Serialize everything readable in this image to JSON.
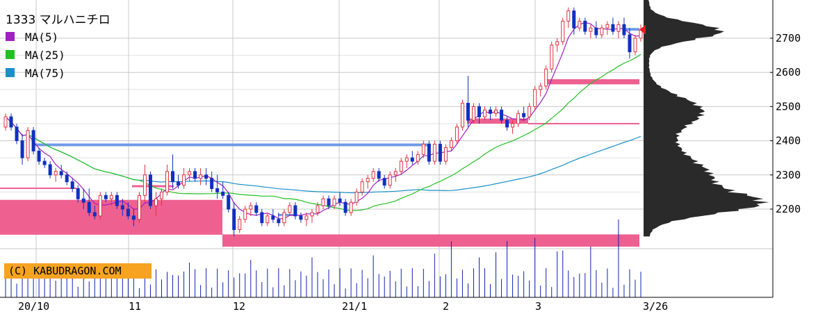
{
  "chart_data": {
    "type": "candlestick",
    "title": "1333 マルハニチロ",
    "legend": [
      {
        "name": "MA(5)",
        "color": "#a020c0"
      },
      {
        "name": "MA(25)",
        "color": "#22c022"
      },
      {
        "name": "MA(75)",
        "color": "#1890c8"
      }
    ],
    "watermark": "(C) KABUDRAGON.COM",
    "y_ticks": [
      2200,
      2300,
      2400,
      2500,
      2600,
      2700
    ],
    "y_tick_labels": [
      "2200",
      "2300",
      "2400",
      "2500",
      "2600",
      "2700"
    ],
    "ylim": [
      2090,
      2880
    ],
    "x_labels": [
      "20/10",
      "11",
      "12",
      "21/1",
      "2",
      "3",
      "3/26"
    ],
    "grid": true,
    "colors": {
      "up": "#e03040",
      "down": "#1030c0",
      "ma5": "#a020c0",
      "ma25": "#22c022",
      "ma75": "#1890c8",
      "gap_zone": "#ee6090",
      "resistance": "#6f9ae6",
      "volume": "#1020b0",
      "volume_profile": "#2a2a2a",
      "watermark_bg": "#f5a320",
      "last_marker": "#e02020"
    },
    "last_price": 2725,
    "ohlc": [
      [
        2440,
        2480,
        2430,
        2470
      ],
      [
        2470,
        2480,
        2430,
        2440
      ],
      [
        2440,
        2450,
        2390,
        2400
      ],
      [
        2400,
        2420,
        2330,
        2350
      ],
      [
        2350,
        2440,
        2340,
        2430
      ],
      [
        2430,
        2440,
        2360,
        2370
      ],
      [
        2370,
        2380,
        2330,
        2340
      ],
      [
        2340,
        2350,
        2320,
        2330
      ],
      [
        2330,
        2340,
        2290,
        2300
      ],
      [
        2300,
        2320,
        2280,
        2310
      ],
      [
        2310,
        2330,
        2290,
        2300
      ],
      [
        2300,
        2310,
        2270,
        2280
      ],
      [
        2280,
        2290,
        2250,
        2260
      ],
      [
        2260,
        2270,
        2220,
        2230
      ],
      [
        2230,
        2260,
        2200,
        2220
      ],
      [
        2220,
        2260,
        2180,
        2190
      ],
      [
        2190,
        2210,
        2170,
        2180
      ],
      [
        2180,
        2250,
        2170,
        2240
      ],
      [
        2240,
        2250,
        2220,
        2230
      ],
      [
        2230,
        2250,
        2210,
        2240
      ],
      [
        2240,
        2250,
        2200,
        2210
      ],
      [
        2210,
        2230,
        2180,
        2200
      ],
      [
        2200,
        2220,
        2170,
        2180
      ],
      [
        2180,
        2200,
        2150,
        2170
      ],
      [
        2170,
        2250,
        2160,
        2240
      ],
      [
        2240,
        2330,
        2220,
        2300
      ],
      [
        2300,
        2310,
        2200,
        2210
      ],
      [
        2210,
        2250,
        2180,
        2230
      ],
      [
        2230,
        2260,
        2210,
        2250
      ],
      [
        2250,
        2330,
        2240,
        2310
      ],
      [
        2310,
        2360,
        2260,
        2280
      ],
      [
        2280,
        2300,
        2260,
        2270
      ],
      [
        2270,
        2320,
        2260,
        2300
      ],
      [
        2300,
        2320,
        2280,
        2310
      ],
      [
        2310,
        2320,
        2280,
        2290
      ],
      [
        2290,
        2320,
        2270,
        2300
      ],
      [
        2300,
        2320,
        2270,
        2290
      ],
      [
        2290,
        2310,
        2250,
        2260
      ],
      [
        2260,
        2300,
        2230,
        2250
      ],
      [
        2250,
        2280,
        2230,
        2240
      ],
      [
        2240,
        2250,
        2190,
        2200
      ],
      [
        2200,
        2220,
        2120,
        2140
      ],
      [
        2140,
        2180,
        2130,
        2170
      ],
      [
        2170,
        2210,
        2160,
        2200
      ],
      [
        2200,
        2220,
        2180,
        2210
      ],
      [
        2210,
        2220,
        2180,
        2190
      ],
      [
        2190,
        2200,
        2150,
        2160
      ],
      [
        2160,
        2190,
        2150,
        2180
      ],
      [
        2180,
        2200,
        2160,
        2170
      ],
      [
        2170,
        2190,
        2150,
        2160
      ],
      [
        2160,
        2200,
        2150,
        2190
      ],
      [
        2190,
        2220,
        2180,
        2210
      ],
      [
        2210,
        2220,
        2170,
        2180
      ],
      [
        2180,
        2190,
        2160,
        2170
      ],
      [
        2170,
        2190,
        2150,
        2180
      ],
      [
        2180,
        2200,
        2160,
        2190
      ],
      [
        2190,
        2220,
        2180,
        2210
      ],
      [
        2210,
        2240,
        2200,
        2230
      ],
      [
        2230,
        2240,
        2200,
        2210
      ],
      [
        2210,
        2240,
        2200,
        2230
      ],
      [
        2230,
        2250,
        2210,
        2220
      ],
      [
        2220,
        2230,
        2180,
        2190
      ],
      [
        2190,
        2230,
        2180,
        2220
      ],
      [
        2220,
        2260,
        2210,
        2250
      ],
      [
        2250,
        2290,
        2240,
        2280
      ],
      [
        2280,
        2300,
        2260,
        2290
      ],
      [
        2290,
        2320,
        2280,
        2310
      ],
      [
        2310,
        2320,
        2280,
        2290
      ],
      [
        2290,
        2300,
        2260,
        2270
      ],
      [
        2270,
        2310,
        2260,
        2300
      ],
      [
        2300,
        2320,
        2280,
        2310
      ],
      [
        2310,
        2350,
        2300,
        2340
      ],
      [
        2340,
        2360,
        2320,
        2350
      ],
      [
        2350,
        2370,
        2330,
        2340
      ],
      [
        2340,
        2370,
        2330,
        2360
      ],
      [
        2360,
        2400,
        2350,
        2390
      ],
      [
        2390,
        2400,
        2330,
        2340
      ],
      [
        2340,
        2400,
        2330,
        2390
      ],
      [
        2390,
        2400,
        2330,
        2340
      ],
      [
        2340,
        2390,
        2330,
        2380
      ],
      [
        2380,
        2410,
        2370,
        2400
      ],
      [
        2400,
        2450,
        2390,
        2440
      ],
      [
        2440,
        2520,
        2430,
        2510
      ],
      [
        2510,
        2590,
        2440,
        2460
      ],
      [
        2460,
        2510,
        2450,
        2500
      ],
      [
        2500,
        2510,
        2450,
        2470
      ],
      [
        2470,
        2500,
        2460,
        2490
      ],
      [
        2490,
        2500,
        2460,
        2480
      ],
      [
        2480,
        2500,
        2470,
        2490
      ],
      [
        2490,
        2500,
        2450,
        2460
      ],
      [
        2460,
        2470,
        2430,
        2440
      ],
      [
        2440,
        2460,
        2420,
        2450
      ],
      [
        2450,
        2490,
        2440,
        2480
      ],
      [
        2480,
        2500,
        2460,
        2470
      ],
      [
        2470,
        2510,
        2460,
        2500
      ],
      [
        2500,
        2560,
        2490,
        2550
      ],
      [
        2550,
        2570,
        2530,
        2560
      ],
      [
        2560,
        2620,
        2550,
        2610
      ],
      [
        2610,
        2690,
        2600,
        2680
      ],
      [
        2680,
        2700,
        2660,
        2690
      ],
      [
        2690,
        2760,
        2680,
        2750
      ],
      [
        2750,
        2790,
        2730,
        2780
      ],
      [
        2780,
        2790,
        2710,
        2730
      ],
      [
        2730,
        2760,
        2720,
        2750
      ],
      [
        2750,
        2760,
        2710,
        2720
      ],
      [
        2720,
        2740,
        2700,
        2730
      ],
      [
        2730,
        2750,
        2700,
        2710
      ],
      [
        2710,
        2740,
        2700,
        2730
      ],
      [
        2730,
        2750,
        2710,
        2740
      ],
      [
        2740,
        2760,
        2710,
        2720
      ],
      [
        2720,
        2750,
        2700,
        2740
      ],
      [
        2740,
        2760,
        2700,
        2710
      ],
      [
        2710,
        2730,
        2640,
        2660
      ],
      [
        2660,
        2710,
        2650,
        2700
      ],
      [
        2700,
        2740,
        2690,
        2725
      ]
    ]
  }
}
